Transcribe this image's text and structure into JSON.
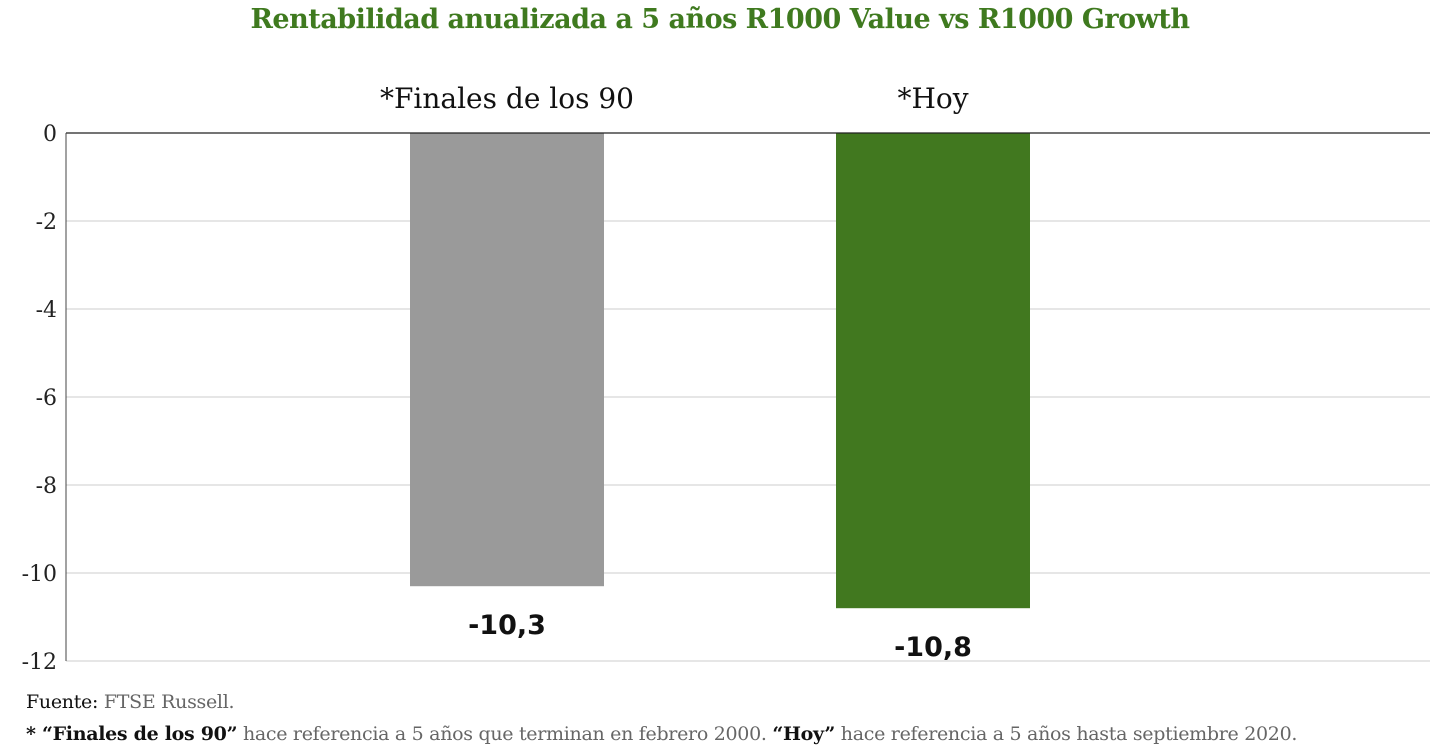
{
  "chart_data": {
    "type": "bar",
    "title": "Rentabilidad anualizada a 5 años R1000 Value vs R1000 Growth",
    "categories": [
      "*Finales de los 90",
      "*Hoy"
    ],
    "values": [
      -10.3,
      -10.8
    ],
    "value_labels": [
      "-10,3",
      "-10,8"
    ],
    "colors": [
      "#9a9a9a",
      "#41781f"
    ],
    "ylim": [
      -12,
      0
    ],
    "yticks": [
      0,
      -2,
      -4,
      -6,
      -8,
      -10,
      -12
    ],
    "ytick_labels": [
      "0",
      "-2",
      "-4",
      "-6",
      "-8",
      "-10",
      "-12"
    ],
    "grid": true,
    "xlabel": "",
    "ylabel": ""
  },
  "footer": {
    "source_label": "Fuente:",
    "source": "FTSE Russell.",
    "note_star": "* ",
    "note_term1": "“Finales de los 90”",
    "note_text1": " hace referencia a 5 años que terminan en febrero 2000. ",
    "note_term2": "“Hoy”",
    "note_text2": " hace referencia a 5 años hasta septiembre 2020."
  }
}
